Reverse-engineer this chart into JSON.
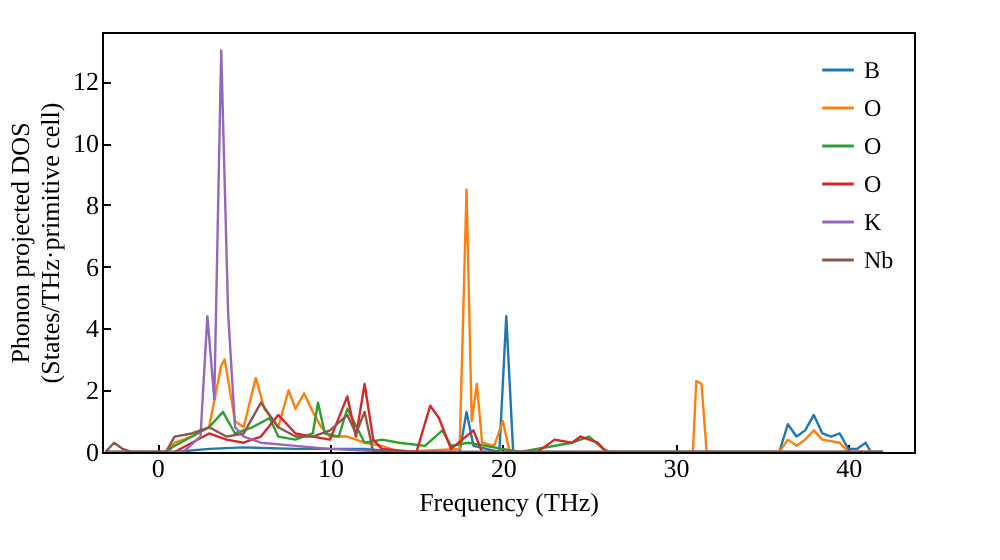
{
  "chart_data": {
    "type": "line",
    "xlabel": "Frequency (THz)",
    "ylabel": "Phonon projected DOS\n(States/THz·primitive cell)",
    "xlim": [
      -3.2,
      43.8
    ],
    "ylim": [
      0,
      13.6
    ],
    "xticks": [
      0,
      10,
      20,
      30,
      40
    ],
    "yticks": [
      0,
      2,
      4,
      6,
      8,
      10,
      12
    ],
    "grid": false,
    "legend": "top right",
    "marker": "none",
    "line_style": "solid",
    "series": [
      {
        "name": "B",
        "color": "#1f77b4",
        "x": [
          -3,
          1,
          3,
          5,
          8,
          10,
          12,
          14,
          17.5,
          17.9,
          18.3,
          19.8,
          20.2,
          20.6,
          36,
          36.5,
          37,
          37.5,
          38,
          38.5,
          39,
          39.5,
          40,
          40.5,
          41,
          41.3,
          42
        ],
        "values": [
          0,
          0,
          0.1,
          0.15,
          0.1,
          0.1,
          0.1,
          0,
          0,
          1.3,
          0.2,
          0,
          4.4,
          0,
          0,
          0.9,
          0.5,
          0.7,
          1.2,
          0.6,
          0.5,
          0.6,
          0.1,
          0.1,
          0.3,
          0,
          0
        ]
      },
      {
        "name": "O",
        "color": "#ff7f0e",
        "x": [
          -3,
          0.5,
          1,
          2,
          3,
          3.7,
          3.9,
          4.5,
          5,
          5.7,
          6.2,
          7,
          7.6,
          8,
          8.5,
          9,
          9.5,
          10,
          11,
          12,
          13,
          14,
          17.5,
          17.9,
          18.2,
          18.5,
          18.8,
          19.5,
          20,
          20.4,
          31,
          31.2,
          31.5,
          31.8,
          36,
          36.5,
          37,
          37.5,
          38,
          38.5,
          39.5,
          40,
          42
        ],
        "values": [
          0,
          0,
          0.3,
          0.5,
          0.8,
          2.8,
          3.0,
          1.0,
          0.8,
          2.4,
          1.4,
          0.8,
          2.0,
          1.4,
          1.9,
          1.3,
          0.8,
          0.5,
          0.5,
          0.3,
          0.2,
          0,
          0.1,
          8.5,
          1.0,
          2.2,
          0.3,
          0.2,
          1.0,
          0,
          0,
          2.3,
          2.2,
          0,
          0,
          0.4,
          0.2,
          0.4,
          0.7,
          0.4,
          0.3,
          0,
          0
        ]
      },
      {
        "name": "O",
        "color": "#2ca02c",
        "x": [
          -3,
          0.5,
          1,
          2,
          3,
          3.8,
          4.5,
          5.5,
          6.5,
          7,
          8,
          9,
          9.3,
          9.7,
          10.5,
          11,
          12,
          13,
          14,
          15.5,
          16.5,
          17,
          18,
          19,
          21,
          24,
          25,
          25.8,
          26.2,
          42
        ],
        "values": [
          0,
          0,
          0.2,
          0.5,
          0.8,
          1.3,
          0.6,
          0.8,
          1.1,
          0.5,
          0.4,
          0.6,
          1.6,
          0.6,
          0.5,
          1.4,
          0.3,
          0.4,
          0.3,
          0.2,
          0.7,
          0.2,
          0.3,
          0.2,
          0,
          0.3,
          0.5,
          0.1,
          0,
          0
        ]
      },
      {
        "name": "O",
        "color": "#d62728",
        "x": [
          -3,
          1,
          2,
          3,
          4,
          5,
          6,
          7,
          8,
          9,
          10,
          11,
          11.5,
          12,
          12.5,
          13,
          15,
          15.8,
          16.3,
          17,
          18.3,
          18.8,
          22,
          23,
          24,
          24.5,
          25.5,
          26,
          42
        ],
        "values": [
          0,
          0,
          0.3,
          0.6,
          0.4,
          0.3,
          0.5,
          1.2,
          0.6,
          0.5,
          0.4,
          1.8,
          0.5,
          2.2,
          0.4,
          0.1,
          0,
          1.5,
          1.1,
          0.1,
          0.7,
          0,
          0,
          0.4,
          0.3,
          0.5,
          0.3,
          0,
          0
        ]
      },
      {
        "name": "K",
        "color": "#9467bd",
        "x": [
          -3,
          1.5,
          2.5,
          2.9,
          3.3,
          3.7,
          4.1,
          4.5,
          5,
          6,
          8,
          10,
          12,
          13,
          42
        ],
        "values": [
          0,
          0,
          0.5,
          4.4,
          1.7,
          13.0,
          4.5,
          0.8,
          0.5,
          0.3,
          0.2,
          0.1,
          0.05,
          0,
          0
        ]
      },
      {
        "name": "Nb",
        "color": "#8c564b",
        "x": [
          -3,
          -2.5,
          -2,
          -1.5,
          0.5,
          1,
          2,
          3,
          4,
          5,
          6,
          7,
          8,
          9,
          10,
          11,
          11.5,
          12,
          12.5,
          20,
          42
        ],
        "values": [
          0,
          0.3,
          0.1,
          0,
          0,
          0.5,
          0.6,
          0.8,
          0.5,
          0.6,
          1.6,
          0.8,
          0.5,
          0.5,
          0.7,
          1.2,
          0.6,
          1.3,
          0,
          0,
          0
        ]
      }
    ]
  }
}
